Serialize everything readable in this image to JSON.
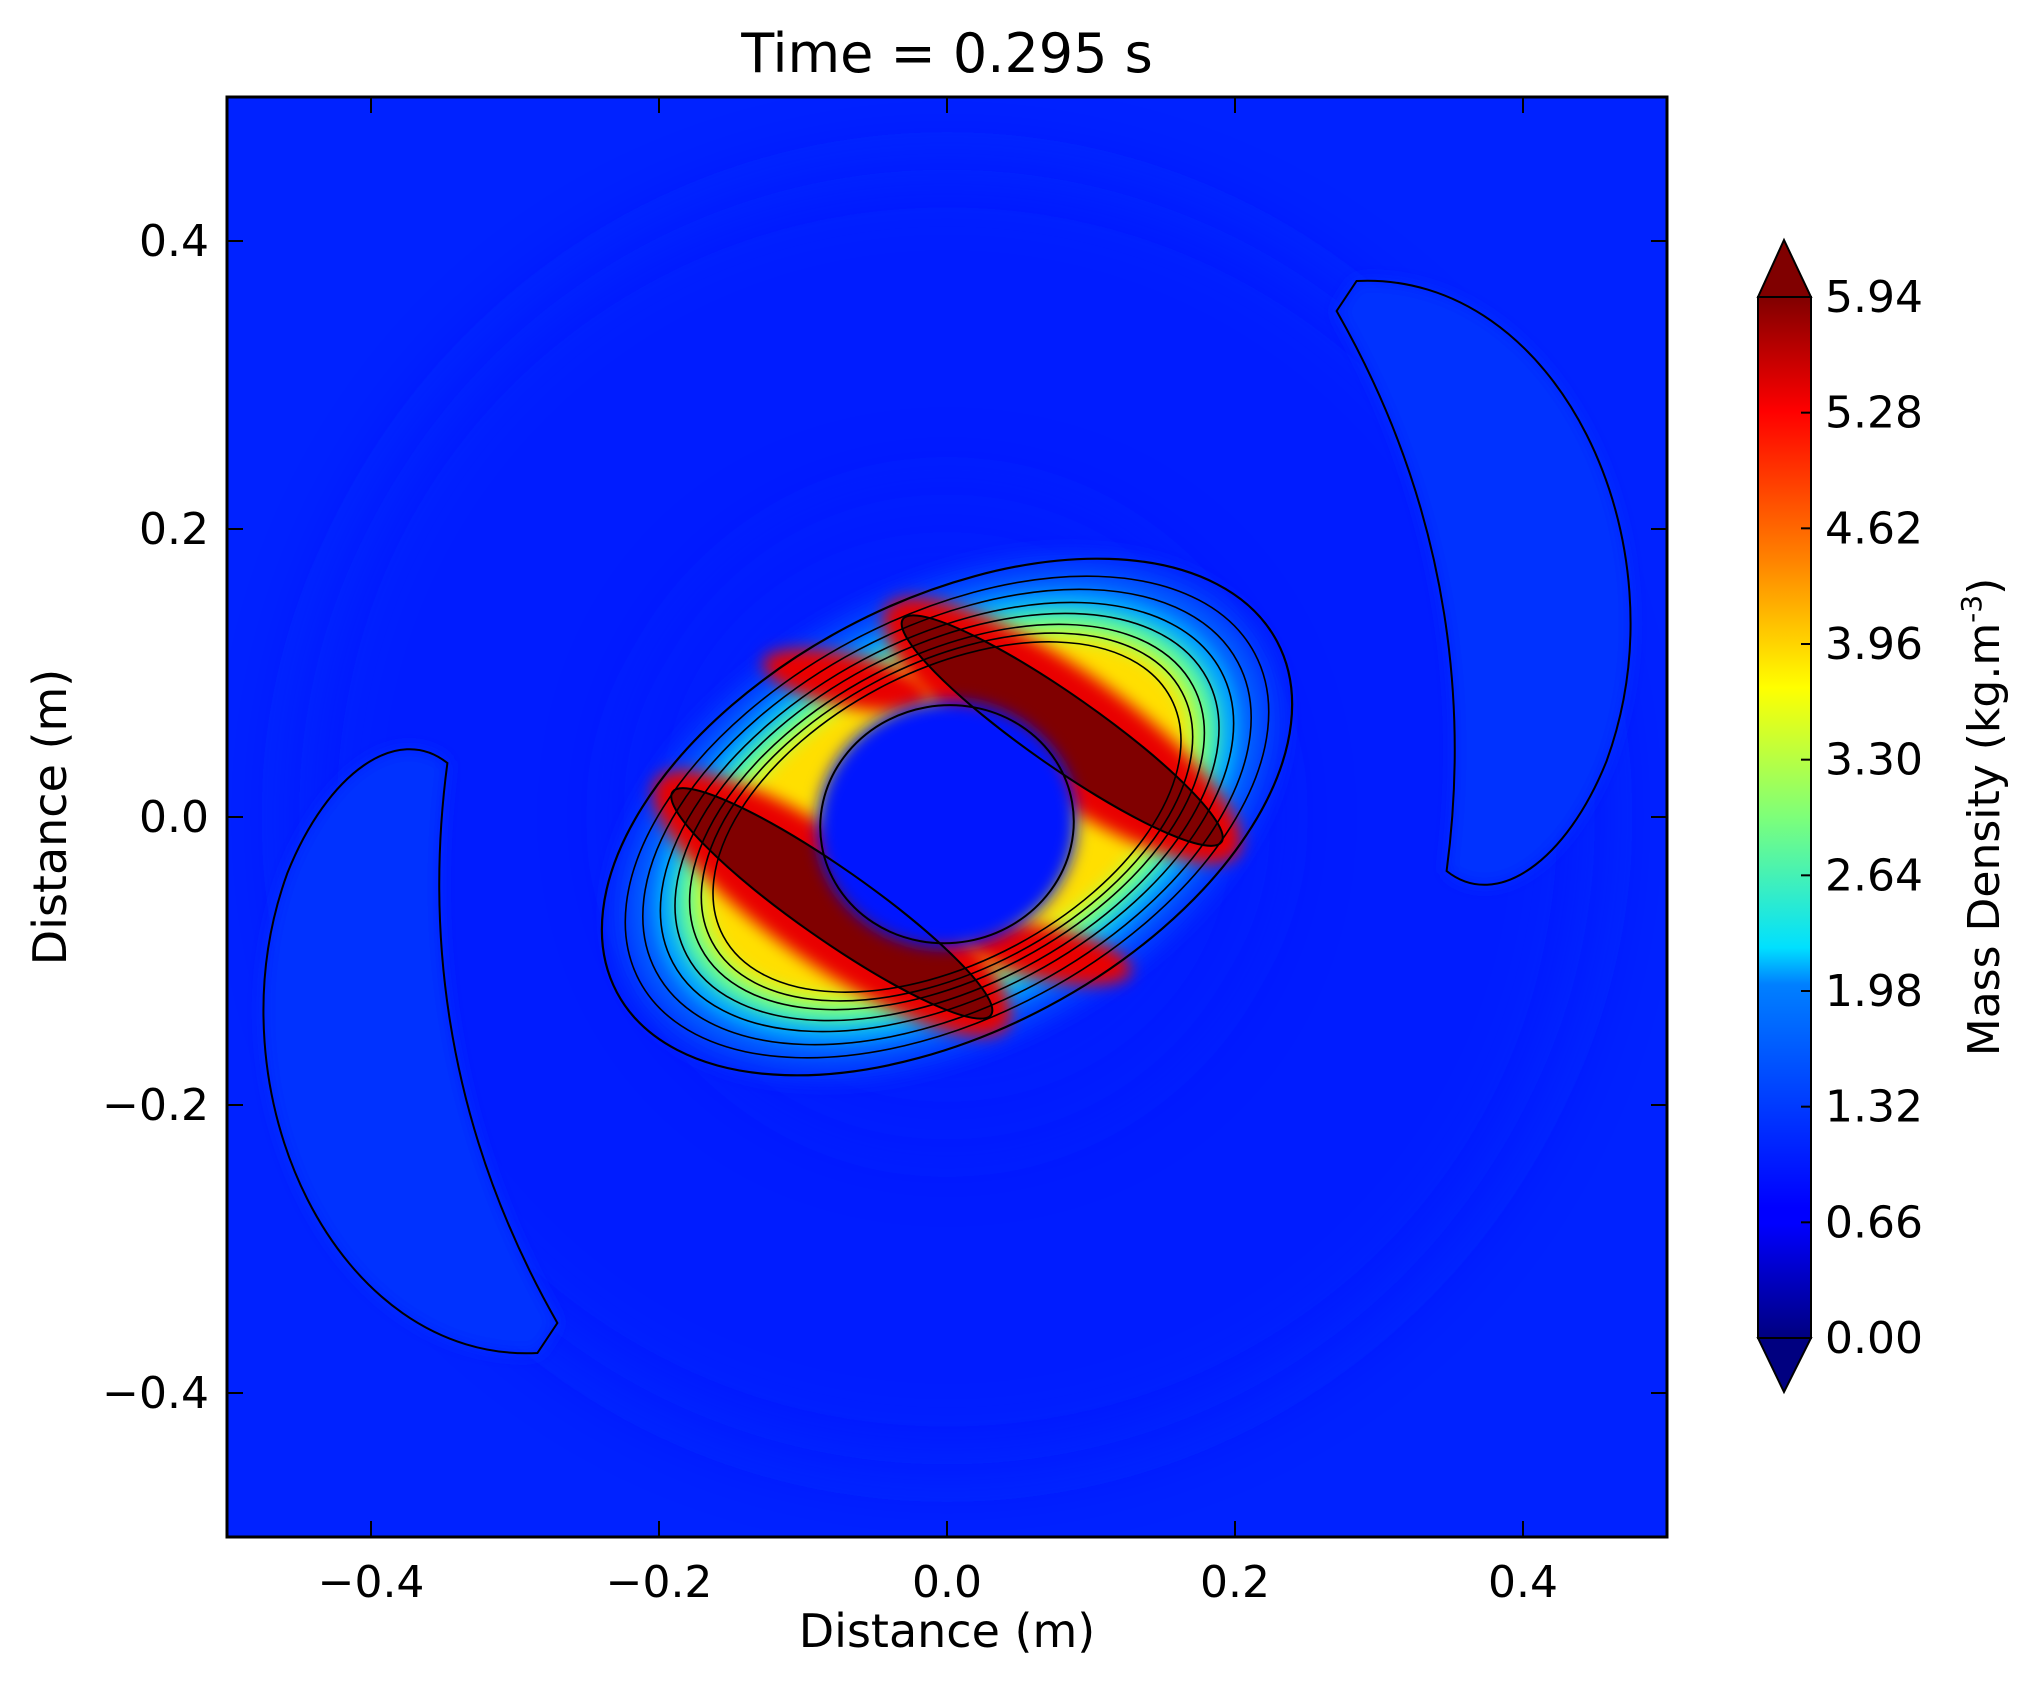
{
  "chart_data": {
    "type": "heatmap",
    "subtype": "filled-contour",
    "title": "Time = 0.295 s",
    "xlabel": "Distance (m)",
    "ylabel": "Distance (m)",
    "xlim": [
      -0.5,
      0.5
    ],
    "ylim": [
      -0.5,
      0.5
    ],
    "xticks": [
      -0.4,
      -0.2,
      0.0,
      0.2,
      0.4
    ],
    "yticks": [
      -0.4,
      -0.2,
      0.0,
      0.2,
      0.4
    ],
    "xtick_labels": [
      "−0.4",
      "−0.2",
      "0.0",
      "0.2",
      "0.4"
    ],
    "ytick_labels": [
      "−0.4",
      "−0.2",
      "0.0",
      "0.2",
      "0.4"
    ],
    "grid": false,
    "colormap": "jet",
    "background_value": 0.85,
    "colorbar": {
      "label": "Mass Density (kg.m",
      "label_superscript": "-3",
      "label_close": ")",
      "min": 0.0,
      "max": 5.94,
      "extend": "both",
      "ticks": [
        0.0,
        0.66,
        1.32,
        1.98,
        2.64,
        3.3,
        3.96,
        4.62,
        5.28,
        5.94
      ],
      "tick_labels": [
        "0.00",
        "0.66",
        "1.32",
        "1.98",
        "2.64",
        "3.30",
        "3.96",
        "4.62",
        "5.28",
        "5.94"
      ]
    },
    "features": [
      {
        "name": "dense-ring",
        "center": [
          0.0,
          0.0
        ],
        "rx": 0.22,
        "ry": 0.095,
        "rotation_deg": -28,
        "peak": 4.4
      },
      {
        "name": "upper-right-arm",
        "center": [
          0.08,
          0.06
        ],
        "length": 0.27,
        "width": 0.045,
        "rotation_deg": -35,
        "peak": 6.2
      },
      {
        "name": "lower-left-arm",
        "center": [
          -0.08,
          -0.06
        ],
        "length": 0.27,
        "width": 0.045,
        "rotation_deg": -35,
        "peak": 6.2
      },
      {
        "name": "upper-left-lobe",
        "center": [
          -0.07,
          0.095
        ],
        "peak": 5.4
      },
      {
        "name": "lower-right-lobe",
        "center": [
          0.07,
          -0.095
        ],
        "peak": 5.4
      },
      {
        "name": "central-cavity",
        "center": [
          0.0,
          -0.005
        ],
        "rx": 0.09,
        "ry": 0.055,
        "value": 0.95
      },
      {
        "name": "outer-crescent-right",
        "center": [
          0.34,
          0.15
        ],
        "value": 1.25
      },
      {
        "name": "outer-crescent-left",
        "center": [
          -0.34,
          -0.15
        ],
        "value": 1.25
      },
      {
        "name": "outer-halo",
        "center": [
          0.0,
          0.0
        ],
        "radius": 0.45,
        "value": 1.05
      }
    ]
  }
}
